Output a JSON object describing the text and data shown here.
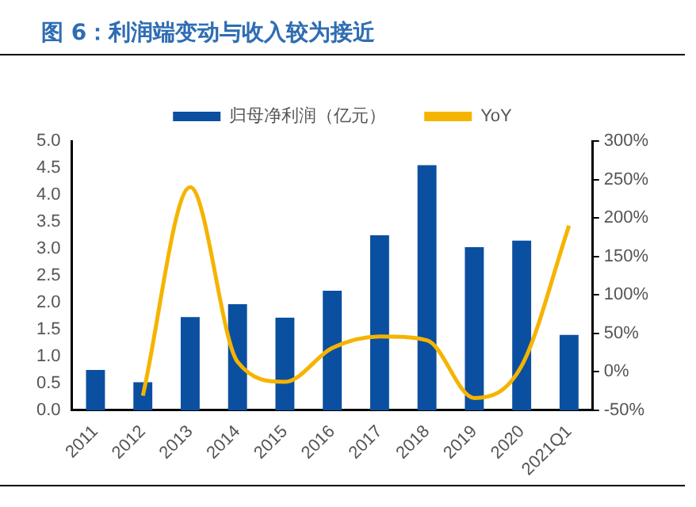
{
  "chart_data": {
    "type": "bar",
    "title": "图 6：利润端变动与收入较为接近",
    "categories": [
      "2011",
      "2012",
      "2013",
      "2014",
      "2015",
      "2016",
      "2017",
      "2018",
      "2019",
      "2020",
      "2021Q1"
    ],
    "series": [
      {
        "name": "归母净利润（亿元）",
        "color": "#0b4fa0",
        "values": [
          0.75,
          0.52,
          1.73,
          1.97,
          1.72,
          2.22,
          3.25,
          4.55,
          3.03,
          3.15,
          1.4
        ]
      },
      {
        "name": "YoY",
        "type": "line",
        "axis": "y2",
        "color": "#f5b400",
        "values": [
          null,
          -31,
          240,
          13,
          -13,
          31,
          46,
          41,
          -34,
          8,
          190
        ]
      }
    ],
    "ylim": [
      0,
      5
    ],
    "yticks": [
      {
        "value": 0,
        "label": "0.0"
      },
      {
        "value": 0.5,
        "label": "0.5"
      },
      {
        "value": 1,
        "label": "1.0"
      },
      {
        "value": 1.5,
        "label": "1.5"
      },
      {
        "value": 2,
        "label": "2.0"
      },
      {
        "value": 2.5,
        "label": "2.5"
      },
      {
        "value": 3,
        "label": "3.0"
      },
      {
        "value": 3.5,
        "label": "3.5"
      },
      {
        "value": 4,
        "label": "4.0"
      },
      {
        "value": 4.5,
        "label": "4.5"
      },
      {
        "value": 5,
        "label": "5.0"
      }
    ],
    "y2lim": [
      -50,
      300
    ],
    "y2ticks": [
      {
        "value": -50,
        "label": "-50%"
      },
      {
        "value": 0,
        "label": "0%"
      },
      {
        "value": 50,
        "label": "50%"
      },
      {
        "value": 100,
        "label": "100%"
      },
      {
        "value": 150,
        "label": "150%"
      },
      {
        "value": 200,
        "label": "200%"
      },
      {
        "value": 250,
        "label": "250%"
      },
      {
        "value": 300,
        "label": "300%"
      }
    ],
    "legend": "top",
    "grid": false,
    "marker": "none"
  }
}
